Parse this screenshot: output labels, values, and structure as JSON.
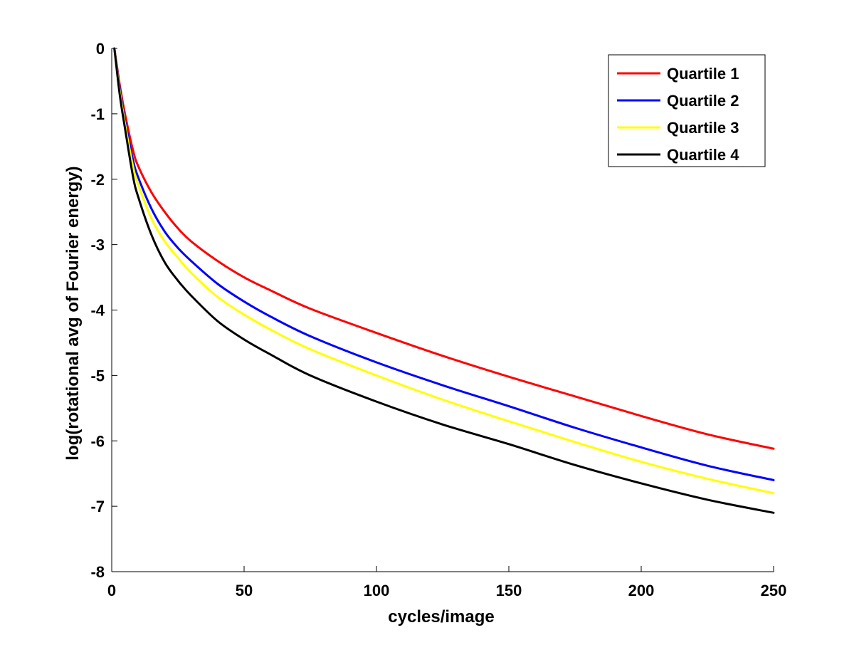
{
  "chart_data": {
    "type": "line",
    "title": "",
    "xlabel": "cycles/image",
    "ylabel": "log(rotational avg of Fourier energy)",
    "xlim": [
      0,
      250
    ],
    "ylim": [
      -8,
      0
    ],
    "xticks": [
      0,
      50,
      100,
      150,
      200,
      250
    ],
    "yticks": [
      0,
      -1,
      -2,
      -3,
      -4,
      -5,
      -6,
      -7,
      -8
    ],
    "grid": false,
    "legend_position": "top-right",
    "x": [
      1,
      3,
      5,
      8,
      10,
      15,
      20,
      25,
      30,
      40,
      50,
      60,
      75,
      100,
      125,
      150,
      175,
      200,
      225,
      250
    ],
    "series": [
      {
        "name": "Quartile 1",
        "color": "#ff0000",
        "values": [
          0,
          -0.55,
          -1.0,
          -1.55,
          -1.8,
          -2.2,
          -2.5,
          -2.75,
          -2.95,
          -3.25,
          -3.5,
          -3.7,
          -3.98,
          -4.35,
          -4.7,
          -5.02,
          -5.32,
          -5.62,
          -5.9,
          -6.12
        ]
      },
      {
        "name": "Quartile 2",
        "color": "#0000ff",
        "values": [
          0,
          -0.6,
          -1.1,
          -1.7,
          -1.97,
          -2.45,
          -2.8,
          -3.05,
          -3.25,
          -3.6,
          -3.87,
          -4.1,
          -4.4,
          -4.8,
          -5.15,
          -5.47,
          -5.8,
          -6.1,
          -6.38,
          -6.6
        ]
      },
      {
        "name": "Quartile 3",
        "color": "#ffff00",
        "values": [
          0,
          -0.65,
          -1.15,
          -1.8,
          -2.08,
          -2.6,
          -2.95,
          -3.2,
          -3.43,
          -3.8,
          -4.07,
          -4.3,
          -4.6,
          -5.0,
          -5.37,
          -5.7,
          -6.02,
          -6.32,
          -6.58,
          -6.8
        ]
      },
      {
        "name": "Quartile 4",
        "color": "#000000",
        "values": [
          0,
          -0.7,
          -1.22,
          -1.95,
          -2.27,
          -2.85,
          -3.27,
          -3.55,
          -3.78,
          -4.17,
          -4.45,
          -4.68,
          -5.0,
          -5.4,
          -5.75,
          -6.05,
          -6.37,
          -6.65,
          -6.9,
          -7.1
        ]
      }
    ]
  }
}
